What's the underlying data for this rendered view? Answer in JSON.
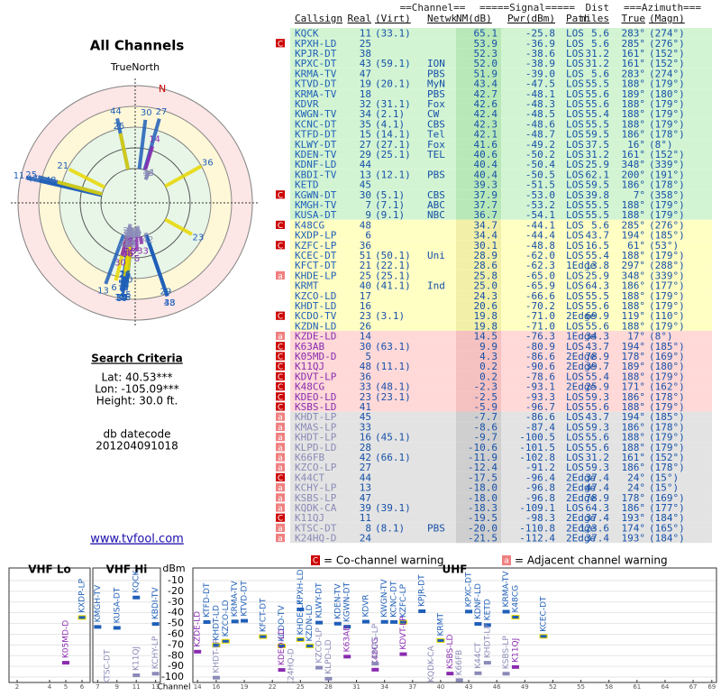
{
  "left": {
    "title": "All Channels",
    "north": "TrueNorth",
    "n": "N",
    "search_title": "Search Criteria",
    "lat": "Lat: 40.53***",
    "lon": "Lon: -105.09***",
    "height": "Height: 30.0 ft.",
    "db_label": "db datecode",
    "db": "201204091018",
    "link": "www.tvfool.com"
  },
  "table": {
    "header_top": [
      "==Channel==",
      "=====Signal=====",
      "Dist",
      "===Azimuth==="
    ],
    "columns": [
      "Callsign",
      "Real",
      "(Virt)",
      "Netwk",
      "NM(dB)",
      "Pwr(dBm)",
      "Path",
      "miles",
      "True",
      "(Magn)"
    ],
    "rows": [
      [
        null,
        "KQCK",
        11,
        "(33.1)",
        null,
        65.1,
        -25.8,
        "LOS",
        5.6,
        {
          "value": 283,
          "label": "283°"
        },
        "(274°)"
      ],
      [
        "C",
        "KPXH-LD",
        25,
        null,
        null,
        53.9,
        -36.9,
        "LOS",
        5.6,
        {
          "value": 285,
          "label": "285°"
        },
        "(276°)"
      ],
      [
        null,
        "KPJR-DT",
        38,
        null,
        null,
        52.3,
        -38.6,
        "LOS",
        31.2,
        {
          "value": 161,
          "label": "161°"
        },
        "(152°)"
      ],
      [
        null,
        "KPXC-DT",
        43,
        "(59.1)",
        "ION",
        {
          "value": 52,
          "label": "52.0"
        },
        -38.9,
        "LOS",
        31.2,
        {
          "value": 161,
          "label": "161°"
        },
        "(152°)"
      ],
      [
        null,
        "KRMA-TV",
        47,
        null,
        "PBS",
        51.9,
        {
          "value": -39,
          "label": "-39.0"
        },
        "LOS",
        5.6,
        {
          "value": 283,
          "label": "283°"
        },
        "(274°)"
      ],
      [
        null,
        "KTVD-DT",
        19,
        "(20.1)",
        "MyN",
        43.4,
        -47.5,
        "LOS",
        55.5,
        {
          "value": 188,
          "label": "188°"
        },
        "(179°)"
      ],
      [
        null,
        "KRMA-TV",
        18,
        null,
        "PBS",
        42.7,
        -48.1,
        "LOS",
        55.6,
        {
          "value": 189,
          "label": "189°"
        },
        "(180°)"
      ],
      [
        null,
        "KDVR",
        32,
        "(31.1)",
        "Fox",
        42.6,
        -48.3,
        "LOS",
        55.6,
        {
          "value": 188,
          "label": "188°"
        },
        "(179°)"
      ],
      [
        null,
        "KWGN-TV",
        34,
        "(2.1)",
        "CW",
        42.4,
        -48.5,
        "LOS",
        55.4,
        {
          "value": 188,
          "label": "188°"
        },
        "(179°)"
      ],
      [
        null,
        "KCNC-DT",
        35,
        "(4.1)",
        "CBS",
        42.3,
        -48.6,
        "LOS",
        55.5,
        {
          "value": 188,
          "label": "188°"
        },
        "(179°)"
      ],
      [
        null,
        "KTFD-DT",
        15,
        "(14.1)",
        "Tel",
        42.1,
        -48.7,
        "LOS",
        59.5,
        {
          "value": 186,
          "label": "186°"
        },
        "(178°)"
      ],
      [
        null,
        "KLWY-DT",
        27,
        "(27.1)",
        "Fox",
        41.6,
        -49.2,
        "LOS",
        37.5,
        {
          "value": 16,
          "label": "16°"
        },
        "(8°)"
      ],
      [
        null,
        "KDEN-TV",
        29,
        "(25.1)",
        "TEL",
        40.6,
        -50.2,
        "LOS",
        31.2,
        {
          "value": 161,
          "label": "161°"
        },
        "(152°)"
      ],
      [
        null,
        "KDNF-LD",
        44,
        null,
        null,
        40.4,
        -50.4,
        "LOS",
        25.9,
        {
          "value": 348,
          "label": "348°"
        },
        "(339°)"
      ],
      [
        null,
        "KBDI-TV",
        13,
        "(12.1)",
        "PBS",
        40.4,
        -50.5,
        "LOS",
        62.1,
        {
          "value": 200,
          "label": "200°"
        },
        "(191°)"
      ],
      [
        null,
        "KETD",
        45,
        null,
        null,
        39.3,
        -51.5,
        "LOS",
        59.5,
        {
          "value": 186,
          "label": "186°"
        },
        "(178°)"
      ],
      [
        "C",
        "KGWN-DT",
        30,
        "(5.1)",
        "CBS",
        37.9,
        {
          "value": -53,
          "label": "-53.0"
        },
        "LOS",
        39.8,
        {
          "value": 7,
          "label": "7°"
        },
        "(358°)"
      ],
      [
        null,
        "KMGH-TV",
        7,
        "(7.1)",
        "ABC",
        37.7,
        -53.2,
        "LOS",
        55.5,
        {
          "value": 188,
          "label": "188°"
        },
        "(179°)"
      ],
      [
        null,
        "KUSA-DT",
        9,
        "(9.1)",
        "NBC",
        36.7,
        -54.1,
        "LOS",
        55.5,
        {
          "value": 188,
          "label": "188°"
        },
        "(179°)"
      ],
      [
        "C",
        "K48CG",
        48,
        null,
        null,
        34.7,
        -44.1,
        "LOS",
        5.6,
        {
          "value": 285,
          "label": "285°"
        },
        "(276°)"
      ],
      [
        null,
        "KXDP-LP",
        6,
        null,
        null,
        34.4,
        -44.4,
        "LOS",
        43.7,
        {
          "value": 194,
          "label": "194°"
        },
        "(185°)"
      ],
      [
        "C",
        "KZFC-LP",
        36,
        null,
        null,
        30.1,
        -48.8,
        "LOS",
        16.5,
        {
          "value": 61,
          "label": "61°"
        },
        "(53°)"
      ],
      [
        null,
        "KCEC-DT",
        51,
        "(50.1)",
        "Uni",
        28.9,
        {
          "value": -62,
          "label": "-62.0"
        },
        "LOS",
        55.4,
        {
          "value": 188,
          "label": "188°"
        },
        "(179°)"
      ],
      [
        null,
        "KFCT-DT",
        21,
        "(22.1)",
        null,
        28.6,
        -62.3,
        "1Edge",
        13.8,
        {
          "value": 297,
          "label": "297°"
        },
        "(288°)"
      ],
      [
        "a",
        "KHDE-LP",
        25,
        "(25.1)",
        null,
        25.8,
        {
          "value": -65,
          "label": "-65.0"
        },
        "LOS",
        25.9,
        {
          "value": 348,
          "label": "348°"
        },
        "(339°)"
      ],
      [
        null,
        "KRMT",
        40,
        "(41.1)",
        "Ind",
        {
          "value": 25,
          "label": "25.0"
        },
        -65.9,
        "LOS",
        64.3,
        {
          "value": 186,
          "label": "186°"
        },
        "(177°)"
      ],
      [
        null,
        "KZCO-LD",
        17,
        null,
        null,
        24.3,
        -66.6,
        "LOS",
        55.5,
        {
          "value": 188,
          "label": "188°"
        },
        "(179°)"
      ],
      [
        null,
        "KHDT-LD",
        16,
        null,
        null,
        20.6,
        -70.2,
        "LOS",
        55.6,
        {
          "value": 188,
          "label": "188°"
        },
        "(179°)"
      ],
      [
        "C",
        "KCDO-TV",
        23,
        "(3.1)",
        null,
        19.8,
        {
          "value": -71,
          "label": "-71.0"
        },
        "2Edge",
        69.9,
        {
          "value": 119,
          "label": "119°"
        },
        "(110°)"
      ],
      [
        null,
        "KZDN-LD",
        26,
        null,
        null,
        19.8,
        {
          "value": -71,
          "label": "-71.0"
        },
        "LOS",
        55.6,
        {
          "value": 188,
          "label": "188°"
        },
        "(179°)"
      ],
      [
        "a",
        "KZDE-LD",
        14,
        null,
        null,
        14.5,
        -76.3,
        "1Edge",
        34.3,
        {
          "value": 17,
          "label": "17°"
        },
        "(8°)"
      ],
      [
        "C",
        "K63AB",
        30,
        "(63.1)",
        null,
        9.9,
        -80.9,
        "LOS",
        43.7,
        {
          "value": 194,
          "label": "194°"
        },
        "(185°)"
      ],
      [
        "C",
        "K05MD-D",
        5,
        null,
        null,
        4.3,
        -86.6,
        "2Edge",
        78.9,
        {
          "value": 178,
          "label": "178°"
        },
        "(169°)"
      ],
      [
        "C",
        "K11QJ",
        48,
        "(11.1)",
        null,
        0.2,
        -90.6,
        "2Edge",
        39.7,
        {
          "value": 189,
          "label": "189°"
        },
        "(180°)"
      ],
      [
        "C",
        "KDVT-LP",
        36,
        null,
        null,
        0.2,
        -78.6,
        "LOS",
        55.4,
        {
          "value": 188,
          "label": "188°"
        },
        "(179°)"
      ],
      [
        "C",
        "K48CG",
        33,
        "(48.1)",
        null,
        -2.3,
        -93.1,
        "2Edge",
        25.9,
        {
          "value": 171,
          "label": "171°"
        },
        "(162°)"
      ],
      [
        "C",
        "KDEO-LD",
        23,
        "(23.1)",
        null,
        -2.5,
        -93.3,
        "LOS",
        59.3,
        {
          "value": 186,
          "label": "186°"
        },
        "(178°)"
      ],
      [
        "C",
        "KSBS-LD",
        41,
        null,
        null,
        -5.9,
        -96.7,
        "LOS",
        55.6,
        {
          "value": 188,
          "label": "188°"
        },
        "(179°)"
      ],
      [
        "a",
        "KHDT-LP",
        45,
        null,
        null,
        -7.7,
        -86.6,
        "LOS",
        43.7,
        {
          "value": 194,
          "label": "194°"
        },
        "(185°)"
      ],
      [
        "a",
        "KMAS-LP",
        33,
        null,
        null,
        -8.6,
        -87.4,
        "LOS",
        59.3,
        {
          "value": 186,
          "label": "186°"
        },
        "(178°)"
      ],
      [
        "a",
        "KHDT-LP",
        16,
        "(45.1)",
        null,
        -9.7,
        -100.5,
        "LOS",
        55.6,
        {
          "value": 188,
          "label": "188°"
        },
        "(179°)"
      ],
      [
        "a",
        "KLPD-LD",
        28,
        null,
        null,
        -10.6,
        -101.5,
        "LOS",
        55.6,
        {
          "value": 188,
          "label": "188°"
        },
        "(179°)"
      ],
      [
        "a",
        "K66FB",
        42,
        "(66.1)",
        null,
        -11.9,
        -102.8,
        "LOS",
        31.2,
        {
          "value": 161,
          "label": "161°"
        },
        "(152°)"
      ],
      [
        "a",
        "KZCO-LP",
        27,
        null,
        null,
        -12.4,
        -91.2,
        "LOS",
        59.3,
        {
          "value": 186,
          "label": "186°"
        },
        "(178°)"
      ],
      [
        "C",
        "K44CT",
        44,
        null,
        null,
        -17.5,
        -96.4,
        "2Edge",
        37.4,
        {
          "value": 24,
          "label": "24°"
        },
        "(15°)"
      ],
      [
        "a",
        "KCHY-LP",
        13,
        null,
        null,
        {
          "value": -18,
          "label": "-18.0"
        },
        -96.8,
        "2Edge",
        47.4,
        {
          "value": 24,
          "label": "24°"
        },
        "(15°)"
      ],
      [
        "a",
        "KSBS-LP",
        47,
        null,
        null,
        {
          "value": -18,
          "label": "-18.0"
        },
        -96.8,
        "2Edge",
        78.9,
        {
          "value": 178,
          "label": "178°"
        },
        "(169°)"
      ],
      [
        "a",
        "KQDK-CA",
        39,
        "(39.1)",
        null,
        -18.3,
        -109.1,
        "LOS",
        64.3,
        {
          "value": 186,
          "label": "186°"
        },
        "(177°)"
      ],
      [
        "C",
        "K11QJ",
        11,
        null,
        null,
        -19.5,
        -98.3,
        "2Edge",
        37.4,
        {
          "value": 193,
          "label": "193°"
        },
        "(184°)"
      ],
      [
        "a",
        "KTSC-DT",
        8,
        "(8.1)",
        "PBS",
        {
          "value": -20,
          "label": "-20.0"
        },
        -110.8,
        "2Edge",
        123.6,
        {
          "value": 174,
          "label": "174°"
        },
        "(165°)"
      ],
      [
        "a",
        "K24HQ-D",
        24,
        null,
        null,
        -21.5,
        -112.4,
        "2Edge",
        37.4,
        {
          "value": 193,
          "label": "193°"
        },
        "(184°)"
      ]
    ]
  },
  "spectrum": {
    "legend": [
      {
        "flag": "C",
        "text": "= Co-channel warning"
      },
      {
        "flag": "a",
        "text": "= Adjacent channel warning"
      }
    ],
    "y_label": "dBm",
    "x_label": "Channel",
    "ylim": [
      -105,
      -5
    ],
    "yticks": [
      -10,
      -20,
      -30,
      -40,
      -50,
      -60,
      -70,
      -80,
      -90,
      -100
    ],
    "bands": [
      {
        "name": "VHF Lo",
        "xlim": [
          1.5,
          6.5
        ],
        "xticks": [
          2,
          4,
          5,
          6
        ]
      },
      {
        "name": "VHF Hi",
        "xlim": [
          6.5,
          13.5
        ],
        "xticks": [
          7,
          9,
          11,
          13
        ]
      },
      {
        "name": "UHF",
        "xlim": [
          13.5,
          69.5
        ],
        "xticks": [
          14,
          16,
          19,
          22,
          25,
          28,
          31,
          34,
          37,
          40,
          43,
          46,
          49,
          52,
          55,
          58,
          61,
          64,
          67,
          69
        ]
      }
    ]
  }
}
